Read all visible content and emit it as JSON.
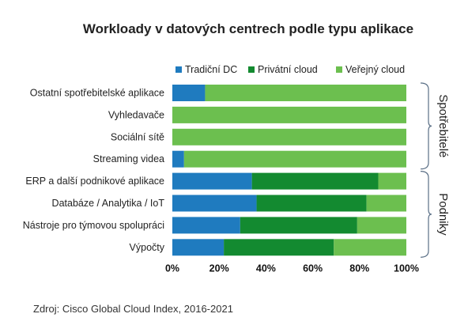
{
  "chart_data": {
    "type": "bar",
    "orientation": "horizontal",
    "stacked": true,
    "title": "Workloady v datových centrech podle typu aplikace",
    "categories": [
      "Ostatní spotřebitelské aplikace",
      "Vyhledavače",
      "Sociální sítě",
      "Streaming videa",
      "ERP a další podnikové aplikace",
      "Databáze / Analytika / IoT",
      "Nástroje pro týmovou spolupráci",
      "Výpočty"
    ],
    "series": [
      {
        "name": "Tradiční DC",
        "color": "#1f7bbf",
        "values": [
          14,
          0,
          0,
          5,
          34,
          36,
          29,
          22
        ]
      },
      {
        "name": "Privátní cloud",
        "color": "#138a30",
        "values": [
          0,
          0,
          0,
          0,
          54,
          47,
          50,
          47
        ]
      },
      {
        "name": "Veřejný cloud",
        "color": "#6cbf4f",
        "values": [
          86,
          100,
          100,
          95,
          12,
          17,
          21,
          31
        ]
      }
    ],
    "xlim": [
      0,
      100
    ],
    "x_ticks": [
      "0%",
      "20%",
      "40%",
      "60%",
      "80%",
      "100%"
    ],
    "legend_position": "top",
    "grid": false,
    "groups": [
      {
        "label": "Spotřebitelé",
        "range": [
          0,
          3
        ]
      },
      {
        "label": "Podniky",
        "range": [
          4,
          7
        ]
      }
    ],
    "source": "Zdroj: Cisco Global Cloud Index, 2016-2021"
  }
}
